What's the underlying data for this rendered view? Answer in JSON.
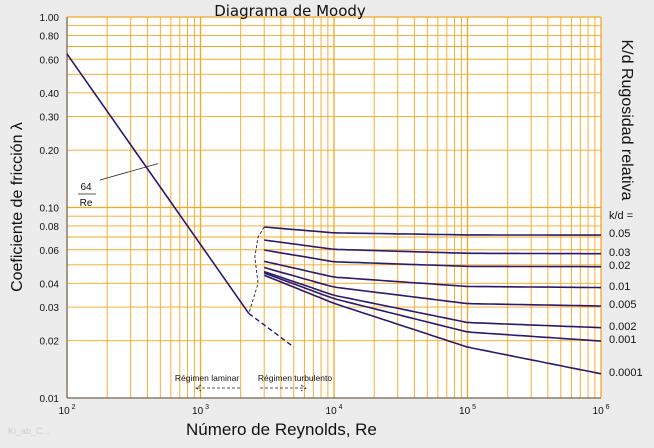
{
  "chart_data": {
    "type": "line",
    "title": "Diagrama de Moody",
    "xlabel": "Número de Reynolds, Re",
    "ylabel": "Coeficiente de fricción λ",
    "y2label": "K/d Rugosidad relativa",
    "kd_header": "k/d  =",
    "x_scale": "log",
    "y_scale": "log",
    "xlim": [
      100,
      1000000
    ],
    "ylim": [
      0.01,
      1.0
    ],
    "grid": true,
    "x_ticks": [
      {
        "value": 100,
        "base": "10",
        "exp": "2"
      },
      {
        "value": 1000,
        "base": "10",
        "exp": "3"
      },
      {
        "value": 10000,
        "base": "10",
        "exp": "4"
      },
      {
        "value": 100000,
        "base": "10",
        "exp": "5"
      },
      {
        "value": 1000000,
        "base": "10",
        "exp": "6"
      }
    ],
    "y_ticks": [
      {
        "value": 1.0,
        "label": "1.00"
      },
      {
        "value": 0.8,
        "label": "0.80"
      },
      {
        "value": 0.6,
        "label": "0.60"
      },
      {
        "value": 0.4,
        "label": "0.40"
      },
      {
        "value": 0.3,
        "label": "0.30"
      },
      {
        "value": 0.2,
        "label": "0.20"
      },
      {
        "value": 0.1,
        "label": "0.10"
      },
      {
        "value": 0.08,
        "label": "0.08"
      },
      {
        "value": 0.06,
        "label": "0.06"
      },
      {
        "value": 0.04,
        "label": "0.04"
      },
      {
        "value": 0.03,
        "label": "0.03"
      },
      {
        "value": 0.02,
        "label": "0.02"
      },
      {
        "value": 0.01,
        "label": "0.01"
      }
    ],
    "laminar_series": {
      "label_num": "64",
      "label_den": "Re",
      "points": [
        [
          100,
          0.64
        ],
        [
          2300,
          0.0278
        ]
      ],
      "dashed_extension": [
        [
          2300,
          0.0278
        ],
        [
          5000,
          0.0185
        ]
      ]
    },
    "transition_envelope": [
      [
        3000,
        0.079
      ],
      [
        2700,
        0.07
      ],
      [
        2550,
        0.055
      ],
      [
        2700,
        0.04
      ],
      [
        2300,
        0.0278
      ]
    ],
    "series": [
      {
        "name": "0.05",
        "values": [
          [
            3000,
            0.079
          ],
          [
            10000,
            0.0736
          ],
          [
            100000,
            0.0718
          ],
          [
            1000000,
            0.0716
          ]
        ]
      },
      {
        "name": "0.03",
        "values": [
          [
            3000,
            0.0675
          ],
          [
            10000,
            0.0603
          ],
          [
            100000,
            0.0575
          ],
          [
            1000000,
            0.0572
          ]
        ]
      },
      {
        "name": "0.02",
        "values": [
          [
            3000,
            0.0598
          ],
          [
            10000,
            0.0519
          ],
          [
            100000,
            0.0491
          ],
          [
            1000000,
            0.0489
          ]
        ]
      },
      {
        "name": "0.01",
        "values": [
          [
            3000,
            0.0522
          ],
          [
            10000,
            0.0431
          ],
          [
            100000,
            0.0385
          ],
          [
            1000000,
            0.038
          ]
        ]
      },
      {
        "name": "0.005",
        "values": [
          [
            3000,
            0.0484
          ],
          [
            10000,
            0.0382
          ],
          [
            100000,
            0.0313
          ],
          [
            1000000,
            0.0304
          ]
        ]
      },
      {
        "name": "0.002",
        "values": [
          [
            3000,
            0.0461
          ],
          [
            10000,
            0.0346
          ],
          [
            100000,
            0.0249
          ],
          [
            1000000,
            0.0234
          ]
        ]
      },
      {
        "name": "0.001",
        "values": [
          [
            3000,
            0.0453
          ],
          [
            10000,
            0.0332
          ],
          [
            100000,
            0.0222
          ],
          [
            1000000,
            0.0199
          ]
        ]
      },
      {
        "name": "0.0001",
        "values": [
          [
            3000,
            0.0441
          ],
          [
            10000,
            0.0314
          ],
          [
            100000,
            0.0185
          ],
          [
            1000000,
            0.0134
          ]
        ]
      }
    ],
    "annotations": {
      "laminar": "Régimen laminar",
      "turbulent": "Régimen turbulento"
    },
    "colors": {
      "grid": "#f5a623",
      "curve": "#2a1a6e",
      "background": "#ececec",
      "plot_background": "#ffffff",
      "text": "#111111"
    }
  },
  "watermark": "Ki_ab_C..."
}
